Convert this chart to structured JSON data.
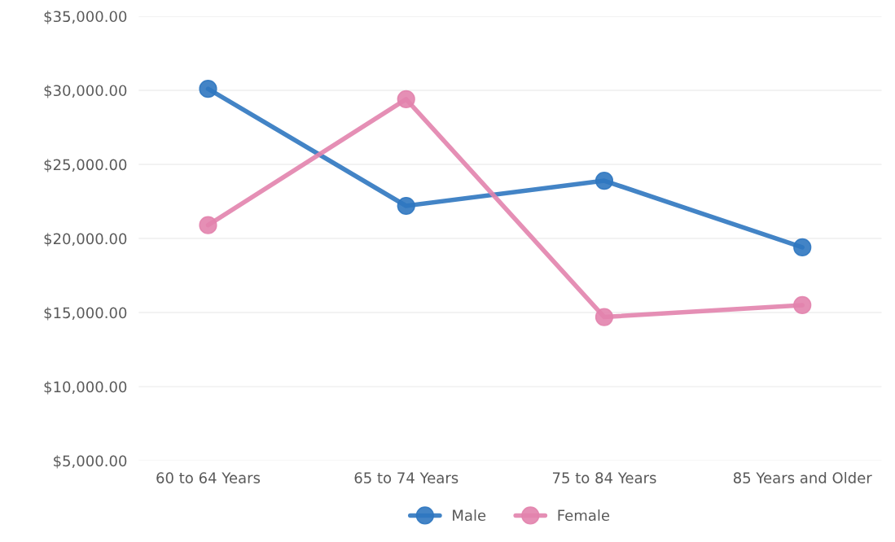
{
  "chart_data": {
    "type": "line",
    "categories": [
      "60 to 64 Years",
      "65 to 74 Years",
      "75 to 84 Years",
      "85 Years and Older"
    ],
    "series": [
      {
        "name": "Male",
        "color": "#2f77c0",
        "values": [
          30100,
          22200,
          23900,
          19400
        ]
      },
      {
        "name": "Female",
        "color": "#e283ad",
        "values": [
          20900,
          29400,
          14700,
          15500
        ]
      }
    ],
    "ylim": [
      5000,
      35000
    ],
    "yticks": [
      {
        "value": 5000,
        "label": "$5,000.00"
      },
      {
        "value": 10000,
        "label": "$10,000.00"
      },
      {
        "value": 15000,
        "label": "$15,000.00"
      },
      {
        "value": 20000,
        "label": "$20,000.00"
      },
      {
        "value": 25000,
        "label": "$25,000.00"
      },
      {
        "value": 30000,
        "label": "$30,000.00"
      },
      {
        "value": 35000,
        "label": "$35,000.00"
      }
    ],
    "grid": "y",
    "legend": "bottom",
    "marker": "circle",
    "line_style": "solid"
  }
}
